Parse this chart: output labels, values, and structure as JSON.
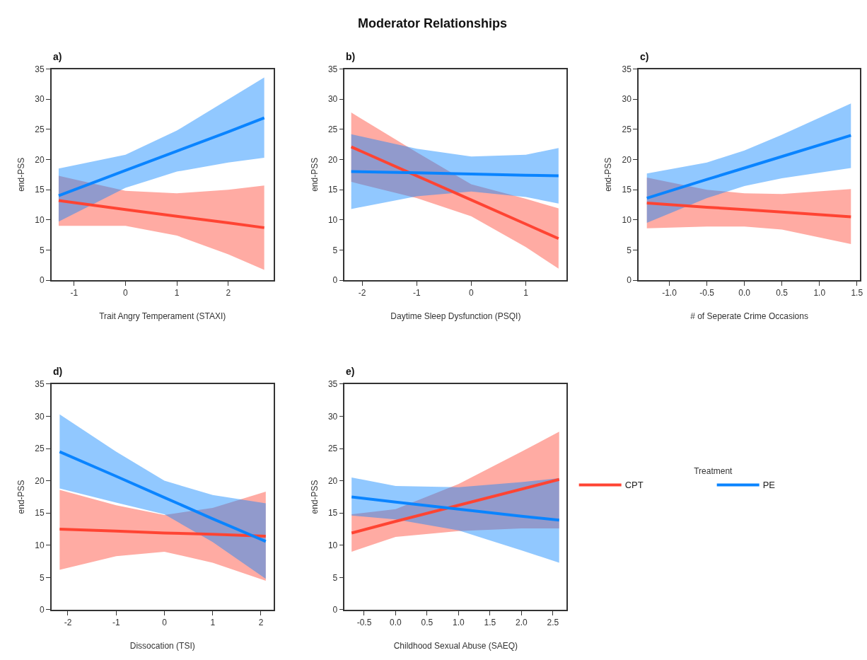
{
  "chart_data": [
    {
      "type": "line",
      "title": "a)",
      "annotations": [
        "Moderator Relationships"
      ],
      "xlabel": "Trait Angry Temperament (STAXI)",
      "ylabel": "end-PSS",
      "xlim": [
        -1.44,
        2.88
      ],
      "xticks": [
        -1,
        0,
        1,
        2
      ],
      "ylim": [
        0,
        35
      ],
      "yticks": [
        0,
        5,
        10,
        15,
        20,
        25,
        30,
        35
      ],
      "x": [
        -1.3,
        0,
        1,
        2,
        2.7
      ],
      "series": [
        {
          "color": "#ff4433",
          "values": [
            13.2,
            11.7,
            10.6,
            9.5,
            8.7
          ],
          "lower": [
            9.0,
            9.0,
            7.4,
            4.3,
            1.7
          ],
          "upper": [
            17.3,
            14.8,
            14.4,
            15.0,
            15.7
          ]
        },
        {
          "color": "#0a84ff",
          "values": [
            14.0,
            18.2,
            21.4,
            24.6,
            26.9
          ],
          "lower": [
            9.7,
            15.3,
            18.0,
            19.5,
            20.3
          ],
          "upper": [
            18.5,
            20.8,
            24.8,
            30.0,
            33.6
          ]
        }
      ]
    },
    {
      "type": "line",
      "title": "b)",
      "xlabel": "Daytime Sleep Dysfunction (PSQI)",
      "ylabel": "end-PSS",
      "xlim": [
        -2.32,
        1.75
      ],
      "xticks": [
        -2,
        -1,
        0,
        1
      ],
      "ylim": [
        0,
        35
      ],
      "yticks": [
        0,
        5,
        10,
        15,
        20,
        25,
        30,
        35
      ],
      "x": [
        -2.2,
        -1,
        0,
        1,
        1.6
      ],
      "series": [
        {
          "color": "#ff4433",
          "values": [
            22.1,
            17.3,
            13.3,
            9.3,
            6.9
          ],
          "lower": [
            16.3,
            13.6,
            10.6,
            5.5,
            1.9
          ],
          "upper": [
            27.8,
            21.2,
            15.9,
            13.5,
            11.9
          ]
        },
        {
          "color": "#0a84ff",
          "values": [
            18.0,
            17.8,
            17.6,
            17.4,
            17.3
          ],
          "lower": [
            11.8,
            13.9,
            14.7,
            13.8,
            12.7
          ],
          "upper": [
            24.2,
            21.8,
            20.5,
            20.8,
            21.9
          ]
        }
      ]
    },
    {
      "type": "line",
      "title": "c)",
      "xlabel": "# of Seperate Crime Occasions",
      "ylabel": "end-PSS",
      "xlim": [
        -1.41,
        1.54
      ],
      "xticks": [
        {
          "value": -1,
          "label": "-1.0"
        },
        -0.5,
        {
          "value": 0,
          "label": "0.0"
        },
        0.5,
        {
          "value": 1,
          "label": "1.0"
        },
        1.5
      ],
      "ylim": [
        0,
        35
      ],
      "yticks": [
        0,
        5,
        10,
        15,
        20,
        25,
        30,
        35
      ],
      "x": [
        -1.3,
        -0.5,
        0,
        0.5,
        1.42
      ],
      "series": [
        {
          "color": "#ff4433",
          "values": [
            12.8,
            12.1,
            11.7,
            11.3,
            10.5
          ],
          "lower": [
            8.6,
            8.9,
            8.9,
            8.4,
            6.0
          ],
          "upper": [
            17.0,
            15.0,
            14.4,
            14.3,
            15.1
          ]
        },
        {
          "color": "#0a84ff",
          "values": [
            13.6,
            16.7,
            18.6,
            20.5,
            24.0
          ],
          "lower": [
            9.5,
            13.6,
            15.6,
            16.9,
            18.6
          ],
          "upper": [
            17.7,
            19.5,
            21.5,
            24.1,
            29.3
          ]
        }
      ]
    },
    {
      "type": "line",
      "title": "d)",
      "xlabel": "Dissocation (TSI)",
      "ylabel": "end-PSS",
      "xlim": [
        -2.34,
        2.26
      ],
      "xticks": [
        -2,
        -1,
        0,
        1,
        2
      ],
      "ylim": [
        0,
        35
      ],
      "yticks": [
        0,
        5,
        10,
        15,
        20,
        25,
        30,
        35
      ],
      "x": [
        -2.17,
        -1,
        0,
        1,
        2.1
      ],
      "series": [
        {
          "color": "#ff4433",
          "values": [
            12.5,
            12.2,
            11.9,
            11.7,
            11.4
          ],
          "lower": [
            6.2,
            8.3,
            9.0,
            7.3,
            4.5
          ],
          "upper": [
            18.6,
            16.2,
            14.7,
            15.8,
            18.3
          ]
        },
        {
          "color": "#0a84ff",
          "values": [
            24.5,
            20.7,
            17.4,
            14.1,
            10.6
          ],
          "lower": [
            18.8,
            16.6,
            14.8,
            10.5,
            4.8
          ],
          "upper": [
            30.3,
            24.5,
            20.0,
            17.8,
            16.5
          ]
        }
      ]
    },
    {
      "type": "line",
      "title": "e)",
      "xlabel": "Childhood Sexual Abuse (SAEQ)",
      "ylabel": "end-PSS",
      "xlim": [
        -0.81,
        2.72
      ],
      "xticks": [
        -0.5,
        {
          "value": 0,
          "label": "0.0"
        },
        0.5,
        {
          "value": 1,
          "label": "1.0"
        },
        1.5,
        {
          "value": 2,
          "label": "2.0"
        },
        2.5
      ],
      "ylim": [
        0,
        35
      ],
      "yticks": [
        0,
        5,
        10,
        15,
        20,
        25,
        30,
        35
      ],
      "x": [
        -0.7,
        0,
        1,
        2,
        2.6
      ],
      "legend": "right",
      "legend_title": "Treatment",
      "series": [
        {
          "name": "CPT",
          "color": "#ff4433",
          "values": [
            11.9,
            13.7,
            16.2,
            18.7,
            20.2
          ],
          "lower": [
            9.0,
            11.3,
            12.2,
            12.6,
            12.6
          ],
          "upper": [
            14.8,
            15.6,
            19.5,
            24.5,
            27.6
          ]
        },
        {
          "name": "PE",
          "color": "#0a84ff",
          "values": [
            17.5,
            16.7,
            15.6,
            14.5,
            13.9
          ],
          "lower": [
            14.6,
            14.0,
            12.3,
            9.2,
            7.3
          ],
          "upper": [
            20.5,
            19.2,
            19.0,
            19.8,
            20.4
          ]
        }
      ]
    }
  ]
}
